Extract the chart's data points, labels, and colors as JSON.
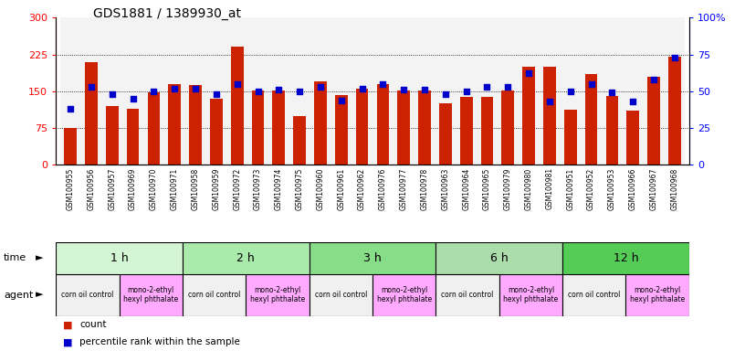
{
  "title": "GDS1881 / 1389930_at",
  "samples": [
    "GSM100955",
    "GSM100956",
    "GSM100957",
    "GSM100969",
    "GSM100970",
    "GSM100971",
    "GSM100958",
    "GSM100959",
    "GSM100972",
    "GSM100973",
    "GSM100974",
    "GSM100975",
    "GSM100960",
    "GSM100961",
    "GSM100962",
    "GSM100976",
    "GSM100977",
    "GSM100978",
    "GSM100963",
    "GSM100964",
    "GSM100965",
    "GSM100979",
    "GSM100980",
    "GSM100981",
    "GSM100951",
    "GSM100952",
    "GSM100953",
    "GSM100966",
    "GSM100967",
    "GSM100968"
  ],
  "counts": [
    75,
    210,
    120,
    115,
    148,
    165,
    162,
    135,
    240,
    151,
    151,
    100,
    170,
    143,
    155,
    165,
    152,
    152,
    125,
    138,
    138,
    152,
    200,
    200,
    112,
    185,
    140,
    110,
    180,
    220
  ],
  "percentiles": [
    38,
    53,
    48,
    45,
    50,
    52,
    52,
    48,
    55,
    50,
    51,
    50,
    53,
    44,
    52,
    55,
    51,
    51,
    48,
    50,
    53,
    53,
    62,
    43,
    50,
    55,
    49,
    43,
    58,
    73
  ],
  "time_groups": [
    {
      "label": "1 h",
      "start": 0,
      "end": 6,
      "color": "#d4f5d4"
    },
    {
      "label": "2 h",
      "start": 6,
      "end": 12,
      "color": "#aaeaaa"
    },
    {
      "label": "3 h",
      "start": 12,
      "end": 18,
      "color": "#88dd88"
    },
    {
      "label": "6 h",
      "start": 18,
      "end": 24,
      "color": "#aaddaa"
    },
    {
      "label": "12 h",
      "start": 24,
      "end": 30,
      "color": "#55cc55"
    }
  ],
  "agent_groups": [
    {
      "label": "corn oil control",
      "start": 0,
      "end": 3,
      "color": "#f0f0f0"
    },
    {
      "label": "mono-2-ethyl\nhexyl phthalate",
      "start": 3,
      "end": 6,
      "color": "#ffaaff"
    },
    {
      "label": "corn oil control",
      "start": 6,
      "end": 9,
      "color": "#f0f0f0"
    },
    {
      "label": "mono-2-ethyl\nhexyl phthalate",
      "start": 9,
      "end": 12,
      "color": "#ffaaff"
    },
    {
      "label": "corn oil control",
      "start": 12,
      "end": 15,
      "color": "#f0f0f0"
    },
    {
      "label": "mono-2-ethyl\nhexyl phthalate",
      "start": 15,
      "end": 18,
      "color": "#ffaaff"
    },
    {
      "label": "corn oil control",
      "start": 18,
      "end": 21,
      "color": "#f0f0f0"
    },
    {
      "label": "mono-2-ethyl\nhexyl phthalate",
      "start": 21,
      "end": 24,
      "color": "#ffaaff"
    },
    {
      "label": "corn oil control",
      "start": 24,
      "end": 27,
      "color": "#f0f0f0"
    },
    {
      "label": "mono-2-ethyl\nhexyl phthalate",
      "start": 27,
      "end": 30,
      "color": "#ffaaff"
    }
  ],
  "bar_color": "#cc2200",
  "dot_color": "#0000cc",
  "left_ylim": [
    0,
    300
  ],
  "right_ylim": [
    0,
    100
  ],
  "left_yticks": [
    0,
    75,
    150,
    225,
    300
  ],
  "right_yticks": [
    0,
    25,
    50,
    75,
    100
  ],
  "right_yticklabels": [
    "0",
    "25",
    "50",
    "75",
    "100%"
  ],
  "gridlines": [
    75,
    150,
    225
  ],
  "bg_color": "#ffffff",
  "legend_count_label": "count",
  "legend_pct_label": "percentile rank within the sample",
  "time_label": "time",
  "agent_label": "agent",
  "sample_bg_color": "#dddddd"
}
